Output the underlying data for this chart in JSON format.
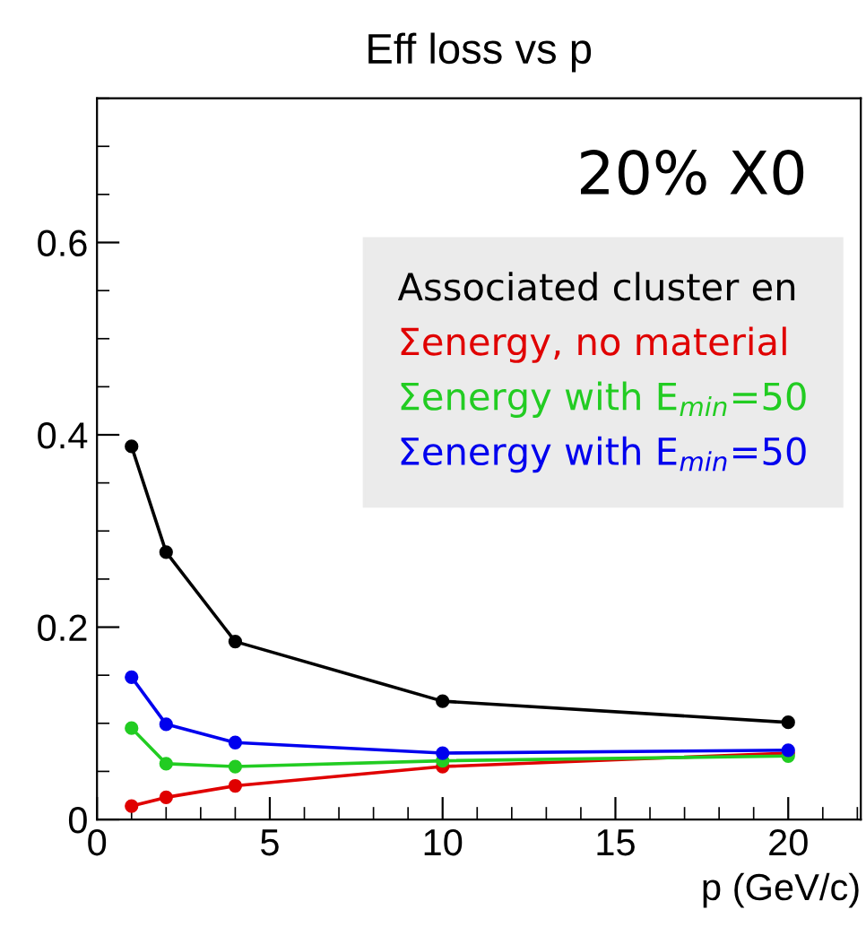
{
  "chart_data": {
    "type": "line",
    "title": "Eff loss vs p",
    "xlabel": "p (GeV/c)",
    "annotations": [
      "20% X0"
    ],
    "x": [
      1,
      2,
      4,
      10,
      20
    ],
    "series": [
      {
        "name": "Associated cluster en",
        "color": "#000000",
        "values": [
          0.388,
          0.278,
          0.185,
          0.123,
          0.101
        ]
      },
      {
        "name": "Σenergy, no material",
        "color": "#e00000",
        "values": [
          0.014,
          0.023,
          0.035,
          0.055,
          0.069
        ]
      },
      {
        "name": "Σenergy with E$_{min}$=50",
        "color": "#22cc22",
        "values": [
          0.095,
          0.058,
          0.055,
          0.061,
          0.066
        ]
      },
      {
        "name": "Σenergy with E$_{min}$=50",
        "color": "#0000ee",
        "values": [
          0.148,
          0.099,
          0.08,
          0.069,
          0.072
        ]
      }
    ],
    "xlim": [
      0,
      22.1
    ],
    "ylim": [
      0,
      0.75
    ],
    "xticks": [
      0,
      5,
      10,
      15,
      20
    ],
    "yticks": [
      0,
      0.2,
      0.4,
      0.6
    ],
    "marker": "circle",
    "line_style": "solid",
    "grid": false,
    "legend": "right"
  }
}
